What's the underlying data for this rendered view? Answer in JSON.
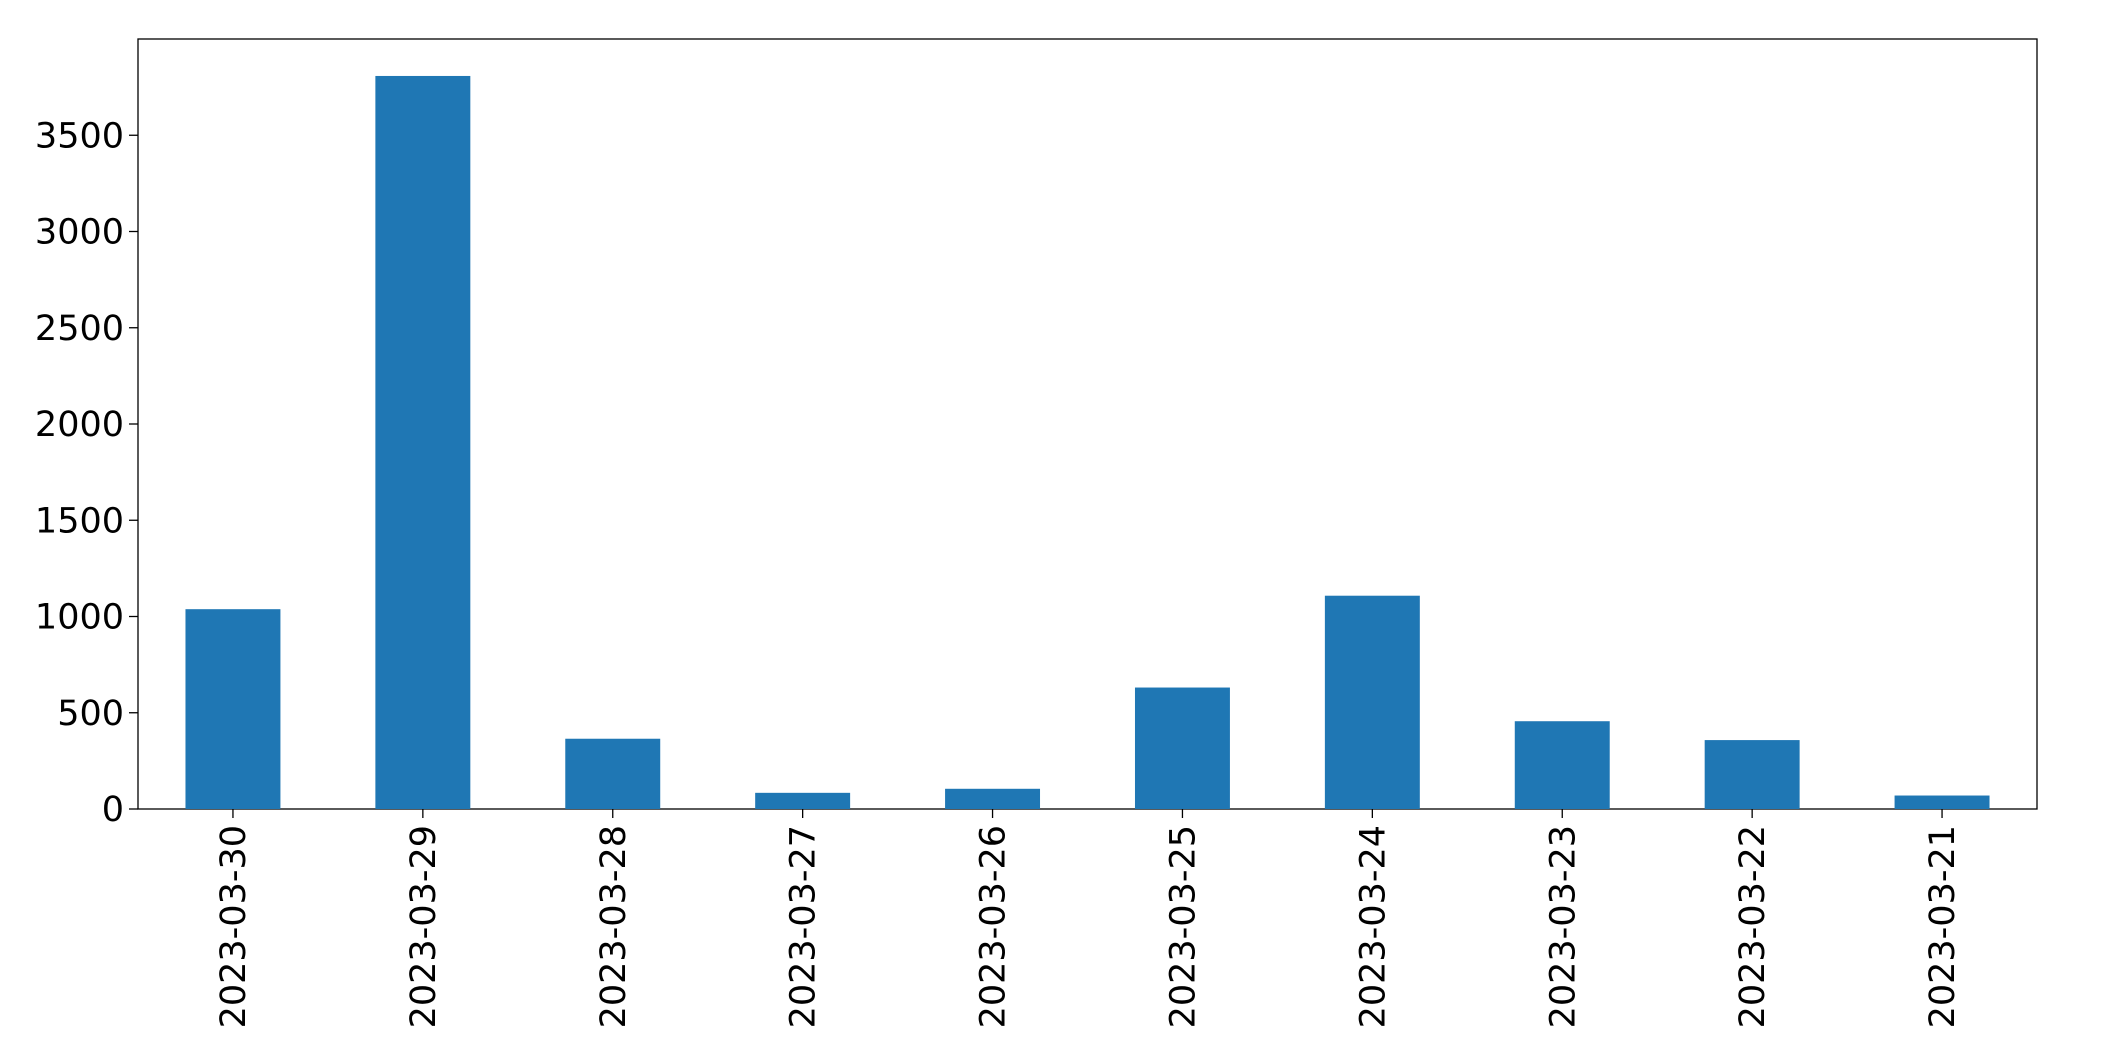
{
  "chart_data": {
    "type": "bar",
    "categories": [
      "2023-03-30",
      "2023-03-29",
      "2023-03-28",
      "2023-03-27",
      "2023-03-26",
      "2023-03-25",
      "2023-03-24",
      "2023-03-23",
      "2023-03-22",
      "2023-03-21"
    ],
    "values": [
      1038,
      3808,
      365,
      84,
      105,
      631,
      1108,
      456,
      358,
      70
    ],
    "color": "#1f77b4",
    "ylim": [
      0,
      4000
    ],
    "yticks": [
      0,
      500,
      1000,
      1500,
      2000,
      2500,
      3000,
      3500
    ],
    "grid": false
  }
}
